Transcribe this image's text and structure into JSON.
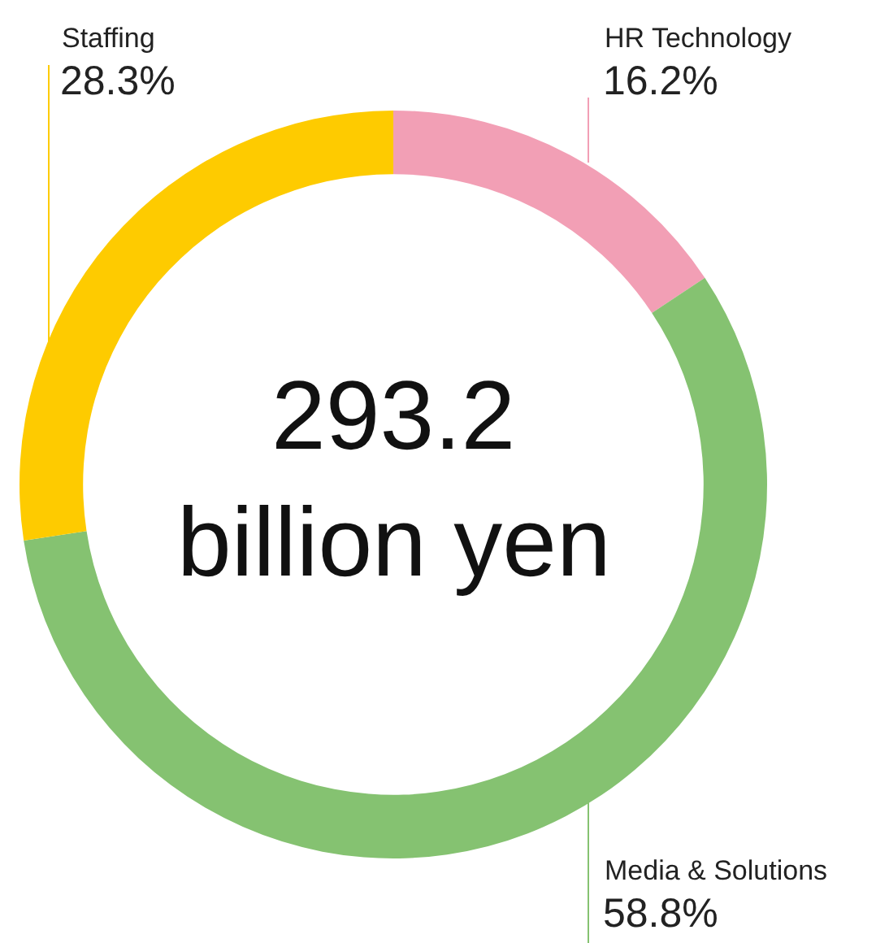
{
  "chart_data": {
    "type": "donut",
    "categories": [
      "HR Technology",
      "Media & Solutions",
      "Staffing"
    ],
    "values": [
      16.2,
      58.8,
      28.3
    ],
    "colors": [
      "#f29fb5",
      "#85c271",
      "#fecb00"
    ],
    "value_labels": [
      "16.2%",
      "58.8%",
      "28.3%"
    ],
    "annotations": [
      "293.2",
      "billion yen"
    ],
    "legend": false
  }
}
